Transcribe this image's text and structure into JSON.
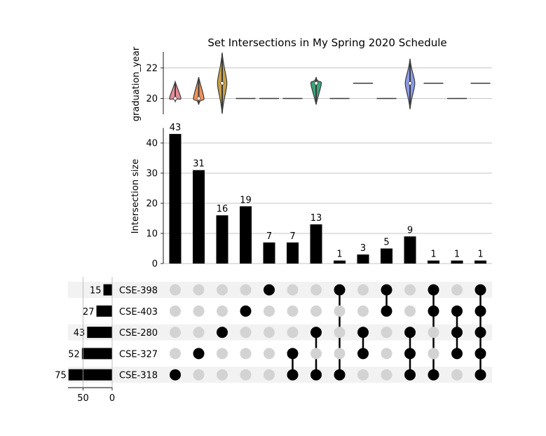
{
  "chart_data": {
    "type": "upset",
    "title": "Set Intersections in My Spring 2020 Schedule",
    "sets": [
      "CSE-398",
      "CSE-403",
      "CSE-280",
      "CSE-327",
      "CSE-318"
    ],
    "set_sizes": [
      15,
      27,
      43,
      52,
      75
    ],
    "set_size_ticks": [
      "50",
      "0"
    ],
    "intersections": [
      {
        "members": [
          "CSE-318"
        ],
        "size": 43
      },
      {
        "members": [
          "CSE-327"
        ],
        "size": 31
      },
      {
        "members": [
          "CSE-280"
        ],
        "size": 16
      },
      {
        "members": [
          "CSE-403"
        ],
        "size": 19
      },
      {
        "members": [
          "CSE-398"
        ],
        "size": 7
      },
      {
        "members": [
          "CSE-327",
          "CSE-318"
        ],
        "size": 7
      },
      {
        "members": [
          "CSE-280",
          "CSE-318"
        ],
        "size": 13
      },
      {
        "members": [
          "CSE-398",
          "CSE-318"
        ],
        "size": 1
      },
      {
        "members": [
          "CSE-280",
          "CSE-327"
        ],
        "size": 3
      },
      {
        "members": [
          "CSE-398",
          "CSE-403"
        ],
        "size": 5
      },
      {
        "members": [
          "CSE-280",
          "CSE-327",
          "CSE-318"
        ],
        "size": 9
      },
      {
        "members": [
          "CSE-398",
          "CSE-403",
          "CSE-318"
        ],
        "size": 1
      },
      {
        "members": [
          "CSE-403",
          "CSE-280",
          "CSE-327"
        ],
        "size": 1
      },
      {
        "members": [
          "CSE-398",
          "CSE-403",
          "CSE-280",
          "CSE-327",
          "CSE-318"
        ],
        "size": 1
      }
    ],
    "bar_ylabel": "Intersection size",
    "bar_ylim": [
      0,
      45
    ],
    "bar_yticks": [
      "0",
      "10",
      "20",
      "30",
      "40"
    ],
    "violin_ylabel": "graduation_year",
    "violin_yticks": [
      "20",
      "22"
    ],
    "violins": [
      {
        "median": 20,
        "min": 19.8,
        "max": 21.1,
        "color": "#e88a96"
      },
      {
        "median": 20,
        "min": 19.6,
        "max": 21.4,
        "color": "#f0915a"
      },
      {
        "median": 21,
        "min": 19.0,
        "max": 23.0,
        "color": "#c8a148"
      },
      {
        "median": 20,
        "flat": true
      },
      {
        "median": 20,
        "flat": true
      },
      {
        "median": 20,
        "flat": true
      },
      {
        "median": 21,
        "min": 19.6,
        "max": 21.4,
        "color": "#3aa57a"
      },
      {
        "median": 20,
        "flat": true
      },
      {
        "median": 21,
        "flat": true
      },
      {
        "median": 20,
        "flat": true
      },
      {
        "median": 21,
        "min": 19.3,
        "max": 22.6,
        "color": "#8d9be6"
      },
      {
        "median": 21,
        "flat": true
      },
      {
        "median": 20,
        "flat": true
      },
      {
        "median": 21,
        "flat": true
      }
    ],
    "colors": {
      "bar": "#000000",
      "dot_active": "#000000",
      "dot_inactive": "#d3d3d3",
      "stripe": "#f2f2f2",
      "grid": "#b0b0b0"
    },
    "grid": true
  }
}
